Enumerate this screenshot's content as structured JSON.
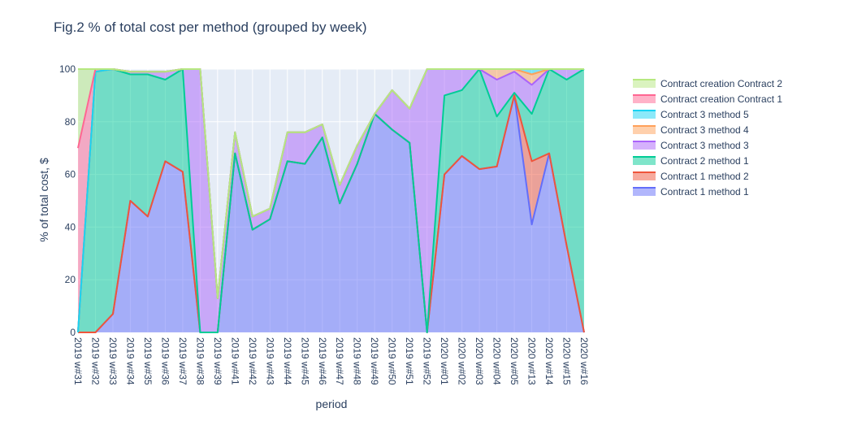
{
  "chart_data": {
    "type": "area",
    "title": "Fig.2 % of total cost per method (grouped by week)",
    "xlabel": "period",
    "ylabel": "% of total cost, $",
    "ylim": [
      0,
      100
    ],
    "yticks": [
      0,
      20,
      40,
      60,
      80,
      100
    ],
    "stacked": true,
    "grid": true,
    "legend_position": "right",
    "categories": [
      "2019 w#31",
      "2019 w#32",
      "2019 w#33",
      "2019 w#34",
      "2019 w#35",
      "2019 w#36",
      "2019 w#37",
      "2019 w#38",
      "2019 w#39",
      "2019 w#41",
      "2019 w#42",
      "2019 w#43",
      "2019 w#44",
      "2019 w#45",
      "2019 w#46",
      "2019 w#47",
      "2019 w#48",
      "2019 w#49",
      "2019 w#50",
      "2019 w#51",
      "2019 w#52",
      "2020 w#01",
      "2020 w#02",
      "2020 w#03",
      "2020 w#04",
      "2020 w#05",
      "2020 w#13",
      "2020 w#14",
      "2020 w#15",
      "2020 w#16"
    ],
    "series": [
      {
        "name": "Contract 1 method 1",
        "color": "#636efa",
        "values": [
          0,
          0,
          7,
          50,
          44,
          65,
          61,
          0,
          0,
          68,
          39,
          43,
          65,
          64,
          74,
          49,
          64,
          83,
          77,
          72,
          0,
          60,
          67,
          62,
          63,
          90,
          41,
          68,
          33,
          0
        ]
      },
      {
        "name": "Contract 1 method 2",
        "color": "#ef553b",
        "values": [
          0,
          0,
          0,
          0,
          0,
          0,
          0,
          0,
          0,
          0,
          0,
          0,
          0,
          0,
          0,
          0,
          0,
          0,
          0,
          0,
          0,
          0,
          0,
          0,
          0,
          0,
          24,
          0,
          0,
          0
        ]
      },
      {
        "name": "Contract 2 method 1",
        "color": "#00cc96",
        "values": [
          0,
          99,
          93,
          48,
          54,
          31,
          39,
          0,
          0,
          0,
          0,
          0,
          0,
          0,
          0,
          0,
          0,
          0,
          0,
          0,
          0,
          30,
          25,
          38,
          19,
          1,
          18,
          32,
          63,
          100
        ]
      },
      {
        "name": "Contract 3 method 3",
        "color": "#ab63fa",
        "values": [
          0,
          0,
          0,
          1,
          1,
          3,
          0,
          100,
          13,
          8,
          5,
          4,
          11,
          12,
          5,
          7,
          7,
          0,
          15,
          13,
          100,
          10,
          8,
          0,
          14,
          8,
          11,
          0,
          4,
          0
        ]
      },
      {
        "name": "Contract 3 method 4",
        "color": "#ffa15a",
        "values": [
          0,
          0,
          0,
          0,
          0,
          0,
          0,
          0,
          0,
          0,
          0,
          0,
          0,
          0,
          0,
          0,
          0,
          0,
          0,
          0,
          0,
          0,
          0,
          0,
          4,
          1,
          4,
          0,
          0,
          0
        ]
      },
      {
        "name": "Contract 3 method 5",
        "color": "#19d3f3",
        "values": [
          0,
          0,
          0,
          0,
          0,
          0,
          0,
          0,
          0,
          0,
          0,
          0,
          0,
          0,
          0,
          0,
          0,
          0,
          0,
          0,
          0,
          0,
          0,
          0,
          0,
          0,
          2,
          0,
          0,
          0
        ]
      },
      {
        "name": "Contract creation Contract 1",
        "color": "#ff6692",
        "values": [
          70,
          1,
          0,
          0,
          0,
          0,
          0,
          0,
          0,
          0,
          0,
          0,
          0,
          0,
          0,
          0,
          0,
          0,
          0,
          0,
          0,
          0,
          0,
          0,
          0,
          0,
          0,
          0,
          0,
          0
        ]
      },
      {
        "name": "Contract creation Contract 2",
        "color": "#b6e880",
        "values": [
          30,
          0,
          0,
          0,
          0,
          0,
          0,
          0,
          0,
          0,
          0,
          0,
          0,
          0,
          0,
          0,
          0,
          0,
          0,
          0,
          0,
          0,
          0,
          0,
          0,
          0,
          0,
          0,
          0,
          0
        ]
      }
    ]
  }
}
